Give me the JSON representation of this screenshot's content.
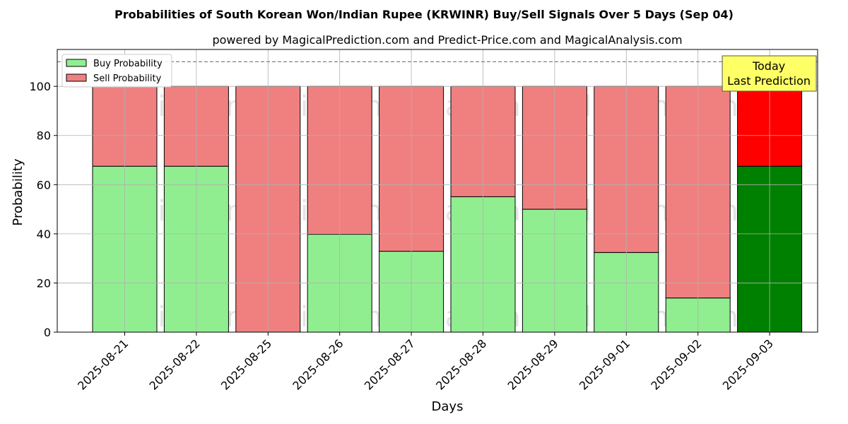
{
  "chart_data": {
    "type": "bar",
    "stacked": true,
    "title": "Probabilities of South Korean Won/Indian Rupee (KRWINR) Buy/Sell Signals Over 5 Days (Sep 04)",
    "subtitle": "powered by MagicalPrediction.com and Predict-Price.com and MagicalAnalysis.com",
    "xlabel": "Days",
    "ylabel": "Probability",
    "ylim": [
      0,
      115
    ],
    "yticks": [
      0,
      20,
      40,
      60,
      80,
      100
    ],
    "reference_line": 110,
    "grid": true,
    "legend_position": "top-left",
    "categories": [
      "2025-08-21",
      "2025-08-22",
      "2025-08-25",
      "2025-08-26",
      "2025-08-27",
      "2025-08-28",
      "2025-08-29",
      "2025-09-01",
      "2025-09-02",
      "2025-09-03"
    ],
    "series": [
      {
        "name": "Buy Probability",
        "values": [
          67.5,
          67.5,
          0,
          39.8,
          32.9,
          55.1,
          50.0,
          32.4,
          13.9,
          67.5
        ],
        "color": "#90ee90",
        "highlight_color": "#008000"
      },
      {
        "name": "Sell Probability",
        "values": [
          32.5,
          32.5,
          100,
          60.2,
          67.1,
          44.9,
          50.0,
          67.6,
          86.1,
          32.5
        ],
        "color": "#f08080",
        "highlight_color": "#ff0000"
      }
    ],
    "highlight_index": 9,
    "annotation": {
      "line1": "Today",
      "line2": "Last Prediction",
      "bg": "#ffff66"
    },
    "watermarks": [
      "MagicalAnalysis.com",
      "MagicalPrediction.com"
    ]
  }
}
